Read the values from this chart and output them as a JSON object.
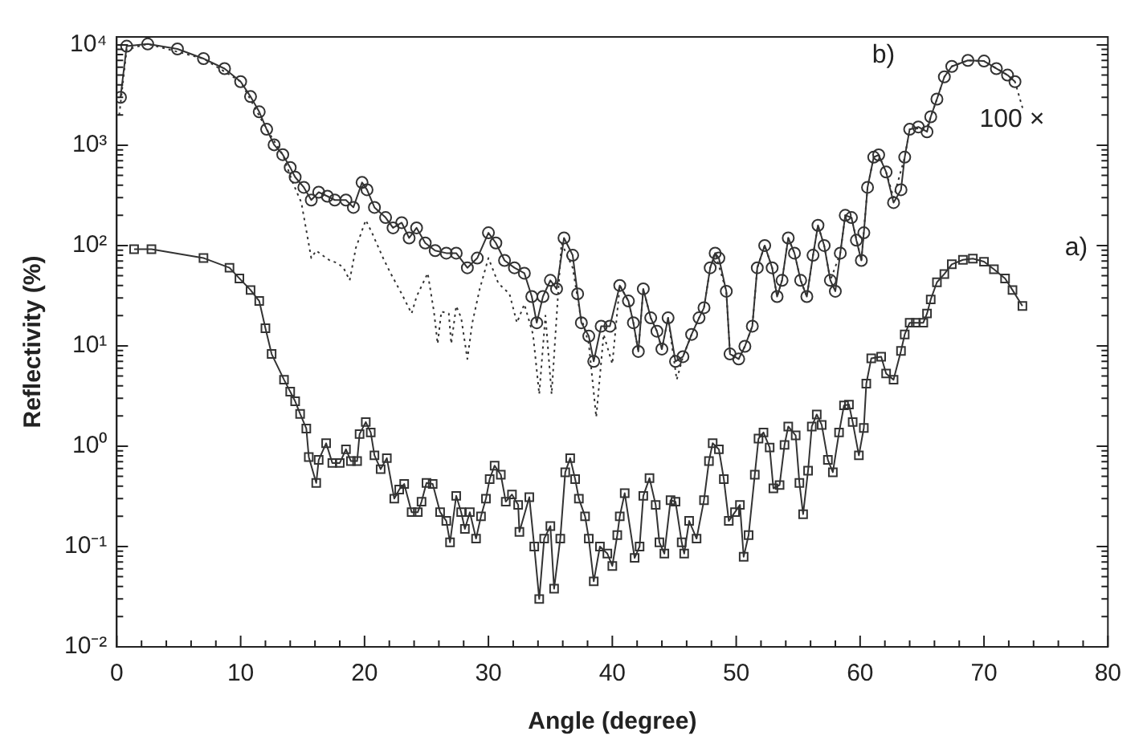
{
  "chart_data": {
    "type": "line",
    "xlabel": "Angle (degree)",
    "ylabel": "Reflectivity (%)",
    "log": "y",
    "grid": false,
    "xlim": [
      0,
      80
    ],
    "ylim": [
      0.01,
      12000
    ],
    "xticks": [
      0,
      {
        "value": 2,
        "label": null
      },
      {
        "value": 4,
        "label": null
      },
      {
        "value": 6,
        "label": null
      },
      {
        "value": 8,
        "label": null
      },
      10,
      {
        "value": 12,
        "label": null
      },
      {
        "value": 14,
        "label": null
      },
      {
        "value": 16,
        "label": null
      },
      {
        "value": 18,
        "label": null
      },
      20,
      {
        "value": 22,
        "label": null
      },
      {
        "value": 24,
        "label": null
      },
      {
        "value": 26,
        "label": null
      },
      {
        "value": 28,
        "label": null
      },
      30,
      {
        "value": 32,
        "label": null
      },
      {
        "value": 34,
        "label": null
      },
      {
        "value": 36,
        "label": null
      },
      {
        "value": 38,
        "label": null
      },
      40,
      {
        "value": 42,
        "label": null
      },
      {
        "value": 44,
        "label": null
      },
      {
        "value": 46,
        "label": null
      },
      {
        "value": 48,
        "label": null
      },
      50,
      {
        "value": 52,
        "label": null
      },
      {
        "value": 54,
        "label": null
      },
      {
        "value": 56,
        "label": null
      },
      {
        "value": 58,
        "label": null
      },
      60,
      {
        "value": 62,
        "label": null
      },
      {
        "value": 64,
        "label": null
      },
      {
        "value": 66,
        "label": null
      },
      {
        "value": 68,
        "label": null
      },
      70,
      {
        "value": 72,
        "label": null
      },
      {
        "value": 74,
        "label": null
      },
      {
        "value": 76,
        "label": null
      },
      {
        "value": 78,
        "label": null
      },
      80
    ],
    "yticks": [
      {
        "value": 0.01,
        "label": "10⁻²"
      },
      {
        "value": 0.02,
        "label": null
      },
      {
        "value": 0.03,
        "label": null
      },
      {
        "value": 0.04,
        "label": null
      },
      {
        "value": 0.05,
        "label": null
      },
      {
        "value": 0.06,
        "label": null
      },
      {
        "value": 0.07,
        "label": null
      },
      {
        "value": 0.08,
        "label": null
      },
      {
        "value": 0.09,
        "label": null
      },
      {
        "value": 0.1,
        "label": "10⁻¹"
      },
      {
        "value": 0.2,
        "label": null
      },
      {
        "value": 0.3,
        "label": null
      },
      {
        "value": 0.4,
        "label": null
      },
      {
        "value": 0.5,
        "label": null
      },
      {
        "value": 0.6,
        "label": null
      },
      {
        "value": 0.7,
        "label": null
      },
      {
        "value": 0.8,
        "label": null
      },
      {
        "value": 0.9,
        "label": null
      },
      {
        "value": 1,
        "label": "10⁰"
      },
      {
        "value": 2,
        "label": null
      },
      {
        "value": 3,
        "label": null
      },
      {
        "value": 4,
        "label": null
      },
      {
        "value": 5,
        "label": null
      },
      {
        "value": 6,
        "label": null
      },
      {
        "value": 7,
        "label": null
      },
      {
        "value": 8,
        "label": null
      },
      {
        "value": 9,
        "label": null
      },
      {
        "value": 10,
        "label": "10¹"
      },
      {
        "value": 20,
        "label": null
      },
      {
        "value": 30,
        "label": null
      },
      {
        "value": 40,
        "label": null
      },
      {
        "value": 50,
        "label": null
      },
      {
        "value": 60,
        "label": null
      },
      {
        "value": 70,
        "label": null
      },
      {
        "value": 80,
        "label": null
      },
      {
        "value": 90,
        "label": null
      },
      {
        "value": 100,
        "label": "10²"
      },
      {
        "value": 200,
        "label": null
      },
      {
        "value": 300,
        "label": null
      },
      {
        "value": 400,
        "label": null
      },
      {
        "value": 500,
        "label": null
      },
      {
        "value": 600,
        "label": null
      },
      {
        "value": 700,
        "label": null
      },
      {
        "value": 800,
        "label": null
      },
      {
        "value": 900,
        "label": null
      },
      {
        "value": 1000,
        "label": "10³"
      },
      {
        "value": 2000,
        "label": null
      },
      {
        "value": 3000,
        "label": null
      },
      {
        "value": 4000,
        "label": null
      },
      {
        "value": 5000,
        "label": null
      },
      {
        "value": 6000,
        "label": null
      },
      {
        "value": 7000,
        "label": null
      },
      {
        "value": 8000,
        "label": null
      },
      {
        "value": 9000,
        "label": null
      },
      {
        "value": 10000,
        "label": "10⁴"
      }
    ],
    "annotations": [
      "a)",
      "b)",
      "100 ×"
    ],
    "series": [
      {
        "color": "#333333",
        "marker": "square",
        "line_style": "solid",
        "x": [
          1.4,
          2.8,
          7.0,
          9.1,
          9.9,
          10.8,
          11.5,
          12.0,
          12.5,
          13.5,
          14.0,
          14.4,
          14.8,
          15.3,
          15.5,
          16.1,
          16.3,
          16.9,
          17.4,
          18.0,
          18.5,
          18.9,
          19.4,
          19.6,
          20.1,
          20.5,
          20.8,
          21.3,
          21.8,
          22.4,
          22.8,
          23.2,
          23.8,
          24.3,
          24.6,
          25.0,
          25.5,
          26.1,
          26.6,
          26.9,
          27.4,
          27.8,
          28.1,
          28.5,
          29.0,
          29.4,
          29.8,
          30.1,
          30.5,
          31.0,
          31.4,
          31.9,
          32.4,
          32.5,
          33.3,
          33.7,
          34.1,
          34.5,
          35.0,
          35.3,
          35.8,
          36.2,
          36.6,
          37.0,
          37.3,
          37.8,
          38.1,
          38.5,
          39.0,
          39.6,
          40.0,
          40.4,
          40.6,
          41.0,
          41.8,
          42.2,
          42.5,
          43.0,
          43.5,
          43.8,
          44.2,
          44.7,
          45.1,
          45.6,
          45.8,
          46.2,
          46.8,
          47.4,
          47.8,
          48.1,
          48.6,
          49.0,
          49.4,
          49.9,
          50.3,
          50.6,
          51.0,
          51.5,
          51.8,
          52.2,
          52.7,
          53.0,
          53.5,
          53.9,
          54.2,
          54.8,
          55.1,
          55.4,
          55.8,
          56.1,
          56.5,
          56.9,
          57.4,
          57.8,
          58.3,
          58.7,
          59.1,
          59.4,
          59.9,
          60.3,
          60.5,
          60.9,
          61.7,
          62.1,
          62.7,
          63.3,
          63.6,
          64.0,
          64.5,
          65.1,
          65.4,
          65.7,
          66.2,
          66.8,
          67.4,
          68.3,
          69.1,
          70.0,
          70.8,
          71.7,
          72.3,
          73.1
        ],
        "values": [
          92,
          92,
          75,
          60,
          47,
          36,
          28,
          15,
          8.3,
          4.6,
          3.5,
          2.8,
          2.1,
          1.5,
          0.78,
          0.43,
          0.73,
          1.07,
          0.68,
          0.68,
          0.93,
          0.71,
          0.71,
          1.32,
          1.74,
          1.37,
          0.81,
          0.59,
          0.76,
          0.3,
          0.37,
          0.42,
          0.22,
          0.22,
          0.28,
          0.43,
          0.42,
          0.22,
          0.18,
          0.11,
          0.32,
          0.22,
          0.15,
          0.22,
          0.12,
          0.2,
          0.3,
          0.47,
          0.64,
          0.52,
          0.28,
          0.33,
          0.26,
          0.14,
          0.31,
          0.1,
          0.03,
          0.12,
          0.16,
          0.038,
          0.12,
          0.55,
          0.76,
          0.47,
          0.3,
          0.2,
          0.12,
          0.045,
          0.1,
          0.085,
          0.064,
          0.13,
          0.2,
          0.34,
          0.077,
          0.1,
          0.32,
          0.48,
          0.26,
          0.11,
          0.085,
          0.29,
          0.28,
          0.11,
          0.085,
          0.18,
          0.12,
          0.29,
          0.71,
          1.07,
          0.93,
          0.47,
          0.18,
          0.22,
          0.26,
          0.079,
          0.13,
          0.52,
          1.19,
          1.37,
          0.97,
          0.38,
          0.41,
          1.03,
          1.57,
          1.28,
          0.43,
          0.21,
          0.57,
          1.57,
          2.07,
          1.63,
          0.73,
          0.55,
          1.37,
          2.55,
          2.6,
          1.74,
          0.81,
          1.52,
          4.2,
          7.5,
          7.8,
          5.3,
          4.6,
          8.9,
          13,
          17,
          17,
          17,
          21,
          29,
          43,
          52,
          65,
          72,
          74,
          69,
          58,
          47,
          36,
          25
        ]
      },
      {
        "color": "#333333",
        "marker": "circle",
        "line_style": "solid",
        "x": [
          0.3,
          0.8,
          2.5,
          4.9,
          7.0,
          8.7,
          10.0,
          10.8,
          11.5,
          12.1,
          12.7,
          13.4,
          14.0,
          14.4,
          15.1,
          15.7,
          16.3,
          17.0,
          17.6,
          18.5,
          19.1,
          19.8,
          20.2,
          20.8,
          21.7,
          22.3,
          23.0,
          23.6,
          24.2,
          24.9,
          25.7,
          26.6,
          27.4,
          28.3,
          29.1,
          30.0,
          30.6,
          31.3,
          32.1,
          32.9,
          33.5,
          33.9,
          34.4,
          35.0,
          35.5,
          36.1,
          36.8,
          37.2,
          37.5,
          38.1,
          38.5,
          39.1,
          39.8,
          40.6,
          41.3,
          41.7,
          42.1,
          42.5,
          43.1,
          43.6,
          44.0,
          44.5,
          45.1,
          45.7,
          46.4,
          47.0,
          47.4,
          47.9,
          48.3,
          48.6,
          49.2,
          49.5,
          50.2,
          50.7,
          51.3,
          51.7,
          52.3,
          52.9,
          53.3,
          53.7,
          54.2,
          54.7,
          55.2,
          55.7,
          56.2,
          56.6,
          57.1,
          57.6,
          58.0,
          58.4,
          58.8,
          59.3,
          59.7,
          60.1,
          60.3,
          60.6,
          61.1,
          61.5,
          62.1,
          62.7,
          63.3,
          63.6,
          64.0,
          64.7,
          65.4,
          65.7,
          66.2,
          66.8,
          67.4,
          68.7,
          70.0,
          71.0,
          71.9,
          72.5
        ],
        "values": [
          3000,
          9700,
          10200,
          9100,
          7300,
          5800,
          4300,
          3050,
          2150,
          1440,
          1010,
          805,
          600,
          480,
          380,
          284,
          340,
          310,
          284,
          284,
          240,
          425,
          360,
          240,
          190,
          150,
          169,
          119,
          150,
          106,
          89,
          84,
          84,
          60,
          75,
          134,
          106,
          71,
          60,
          53,
          31,
          17,
          31,
          45,
          37,
          119,
          80,
          33,
          17,
          12.5,
          7.0,
          15.7,
          15.7,
          40,
          28,
          17,
          8.8,
          37,
          19,
          14,
          9.3,
          19,
          7.0,
          7.8,
          13,
          19,
          24,
          60,
          84,
          75,
          35,
          8.3,
          7.4,
          9.9,
          15.7,
          60,
          100,
          60,
          31,
          45,
          119,
          84,
          45,
          31,
          80,
          159,
          100,
          45,
          35,
          84,
          200,
          190,
          113,
          71,
          134,
          380,
          760,
          800,
          540,
          268,
          360,
          760,
          1440,
          1520,
          1360,
          1920,
          2880,
          4800,
          6100,
          7000,
          6900,
          5800,
          5000,
          4300
        ]
      },
      {
        "color": "#333333",
        "marker": "none",
        "line_style": "dotted",
        "x": [
          0.2,
          0.8,
          2.5,
          7.0,
          10.0,
          12.1,
          13.4,
          14.2,
          14.9,
          15.7,
          16.1,
          16.6,
          17.2,
          17.8,
          18.3,
          18.8,
          19.3,
          20.1,
          20.6,
          21.5,
          22.1,
          23.0,
          23.8,
          24.2,
          25.1,
          25.6,
          25.9,
          26.2,
          26.8,
          27.0,
          27.4,
          27.8,
          28.3,
          28.7,
          29.3,
          30.0,
          30.8,
          31.7,
          32.3,
          32.9,
          33.6,
          34.1,
          34.6,
          35.1,
          35.6,
          35.9,
          36.8,
          37.4,
          38.1,
          38.7,
          39.3,
          40.0,
          40.6,
          41.3,
          41.7,
          42.1,
          42.5,
          43.1,
          43.6,
          44.0,
          44.5,
          45.2,
          45.7,
          46.4,
          47.0,
          47.4,
          47.9,
          48.3,
          49.2,
          49.5,
          50.2,
          50.7,
          51.3,
          51.7,
          52.3,
          52.9,
          53.3,
          53.7,
          54.2,
          54.7,
          55.2,
          55.7,
          56.2,
          56.6,
          57.1,
          57.6,
          58.4,
          58.8,
          59.3,
          60.1,
          60.6,
          61.1,
          61.5,
          62.1,
          62.7,
          63.6,
          64.0,
          65.4,
          66.2,
          66.8,
          67.4,
          68.7,
          70.0,
          71.9,
          72.5,
          73.2
        ],
        "values": [
          2000,
          9000,
          10200,
          7300,
          4300,
          1440,
          805,
          425,
          268,
          75,
          89,
          80,
          71,
          67,
          60,
          45,
          95,
          179,
          134,
          75,
          53,
          33,
          21,
          31,
          53,
          22,
          10.5,
          22,
          21,
          10.5,
          25,
          19,
          7.4,
          17,
          37,
          75,
          42,
          33,
          17,
          26,
          13,
          3.3,
          20,
          3.3,
          30,
          106,
          60,
          21,
          10.5,
          1.95,
          13,
          6.6,
          40,
          28,
          17,
          8.8,
          37,
          19,
          14,
          9.3,
          19,
          4.6,
          7.8,
          13,
          19,
          24,
          60,
          84,
          35,
          8.3,
          7.4,
          9.9,
          15.7,
          60,
          100,
          60,
          31,
          45,
          119,
          84,
          45,
          31,
          80,
          159,
          100,
          45,
          84,
          200,
          190,
          71,
          380,
          760,
          800,
          540,
          300,
          760,
          1440,
          1500,
          2880,
          4800,
          6100,
          7000,
          6900,
          5000,
          4300,
          2150
        ]
      }
    ]
  }
}
